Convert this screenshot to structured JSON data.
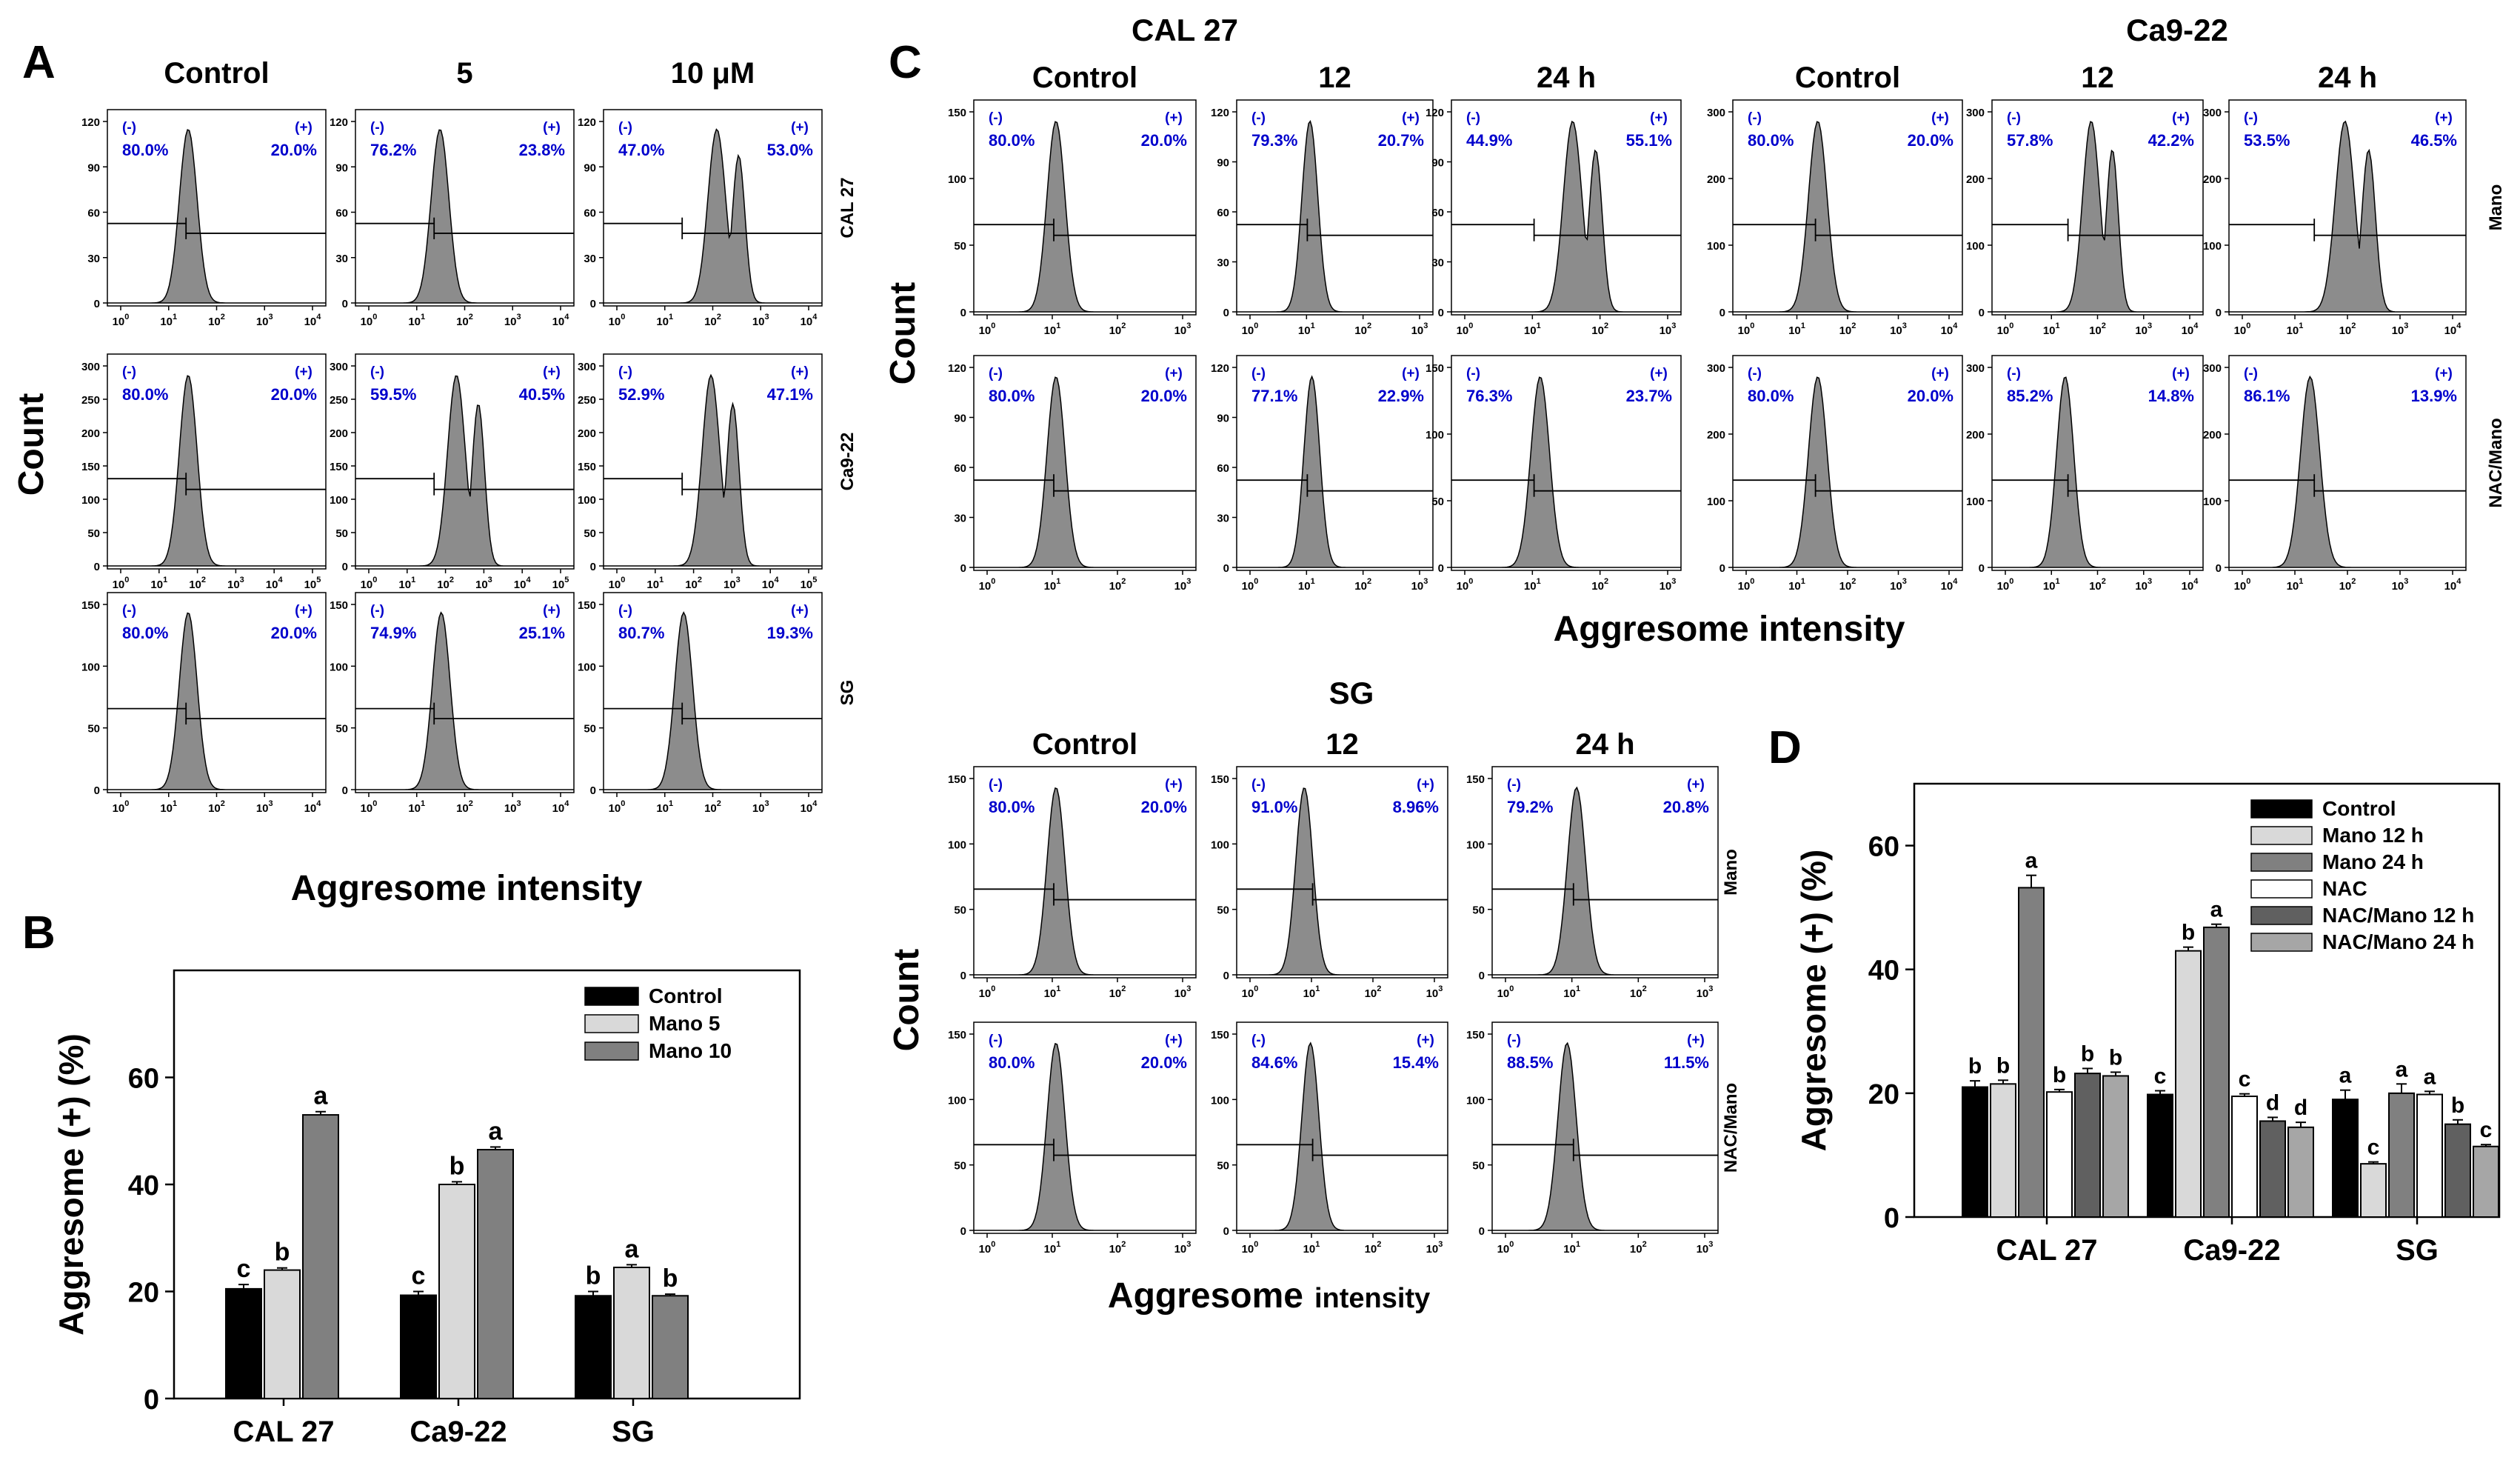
{
  "chart_data": [
    {
      "type": "histogram-grid",
      "panel": "A",
      "column_headers": [
        "Control",
        "5",
        "10 μM"
      ],
      "row_labels": [
        "CAL 27",
        "Ca9-22",
        "SG"
      ],
      "ylabel": "Count",
      "xlabel": "Aggresome intensity",
      "gate_neg": "(-)",
      "gate_pos": "(+)",
      "rows": [
        {
          "yticks": [
            "0",
            "30",
            "60",
            "90",
            "120"
          ],
          "xdecades": 4,
          "cells": [
            {
              "neg": "80.0%",
              "pos": "20.0%"
            },
            {
              "neg": "76.2%",
              "pos": "23.8%"
            },
            {
              "neg": "47.0%",
              "pos": "53.0%"
            }
          ]
        },
        {
          "yticks": [
            "0",
            "50",
            "100",
            "150",
            "200",
            "250",
            "300"
          ],
          "xdecades": 5,
          "cells": [
            {
              "neg": "80.0%",
              "pos": "20.0%"
            },
            {
              "neg": "59.5%",
              "pos": "40.5%"
            },
            {
              "neg": "52.9%",
              "pos": "47.1%"
            }
          ]
        },
        {
          "yticks": [
            "0",
            "50",
            "100",
            "150"
          ],
          "xdecades": 4,
          "cells": [
            {
              "neg": "80.0%",
              "pos": "20.0%"
            },
            {
              "neg": "74.9%",
              "pos": "25.1%"
            },
            {
              "neg": "80.7%",
              "pos": "19.3%"
            }
          ]
        }
      ]
    },
    {
      "type": "bar",
      "panel": "B",
      "categories": [
        "CAL 27",
        "Ca9-22",
        "SG"
      ],
      "series": [
        {
          "name": "Control",
          "color": "#000000",
          "values": [
            20.5,
            19.3,
            19.2
          ],
          "errors": [
            0.8,
            0.7,
            0.8
          ],
          "letters": [
            "c",
            "c",
            "b"
          ]
        },
        {
          "name": "Mano 5",
          "color": "#d9d9d9",
          "values": [
            24.0,
            40.0,
            24.5
          ],
          "errors": [
            0.4,
            0.5,
            0.5
          ],
          "letters": [
            "b",
            "b",
            "a"
          ]
        },
        {
          "name": "Mano 10",
          "color": "#808080",
          "values": [
            53.0,
            46.5,
            19.2
          ],
          "errors": [
            0.6,
            0.5,
            0.3
          ],
          "letters": [
            "a",
            "a",
            "b"
          ]
        }
      ],
      "ylabel": "Aggresome (+) (%)",
      "ylim": [
        0,
        80
      ],
      "yticks": [
        "0",
        "20",
        "40",
        "60"
      ]
    },
    {
      "type": "histogram-grid",
      "panel": "C",
      "group_titles": [
        "CAL 27",
        "Ca9-22"
      ],
      "column_headers": [
        "Control",
        "12",
        "24 h",
        "Control",
        "12",
        "24 h"
      ],
      "row_labels": [
        "Mano",
        "NAC/Mano"
      ],
      "ylabel": "Count",
      "xlabel": "Aggresome intensity",
      "gate_neg": "(-)",
      "gate_pos": "(+)",
      "rows": [
        {
          "cells": [
            {
              "neg": "80.0%",
              "pos": "20.0%"
            },
            {
              "neg": "79.3%",
              "pos": "20.7%"
            },
            {
              "neg": "44.9%",
              "pos": "55.1%"
            },
            {
              "neg": "80.0%",
              "pos": "20.0%"
            },
            {
              "neg": "57.8%",
              "pos": "42.2%"
            },
            {
              "neg": "53.5%",
              "pos": "46.5%"
            }
          ]
        },
        {
          "cells": [
            {
              "neg": "80.0%",
              "pos": "20.0%"
            },
            {
              "neg": "77.1%",
              "pos": "22.9%"
            },
            {
              "neg": "76.3%",
              "pos": "23.7%"
            },
            {
              "neg": "80.0%",
              "pos": "20.0%"
            },
            {
              "neg": "85.2%",
              "pos": "14.8%"
            },
            {
              "neg": "86.1%",
              "pos": "13.9%"
            }
          ]
        }
      ],
      "yticks_by_cell": [
        [
          [
            "0",
            "50",
            "100",
            "150"
          ],
          [
            "0",
            "30",
            "60",
            "90",
            "120"
          ],
          [
            "0",
            "30",
            "60",
            "90",
            "120"
          ],
          [
            "0",
            "100",
            "200",
            "300"
          ],
          [
            "0",
            "100",
            "200",
            "300"
          ],
          [
            "0",
            "100",
            "200",
            "300"
          ]
        ],
        [
          [
            "0",
            "30",
            "60",
            "90",
            "120"
          ],
          [
            "0",
            "30",
            "60",
            "90",
            "120"
          ],
          [
            "0",
            "50",
            "100",
            "150"
          ],
          [
            "0",
            "100",
            "200",
            "300"
          ],
          [
            "0",
            "100",
            "200",
            "300"
          ],
          [
            "0",
            "100",
            "200",
            "300"
          ]
        ]
      ]
    },
    {
      "type": "histogram-grid",
      "panel": "C-SG",
      "group_titles": [
        "SG"
      ],
      "column_headers": [
        "Control",
        "12",
        "24 h"
      ],
      "row_labels": [
        "Mano",
        "NAC/Mano"
      ],
      "ylabel": "Count",
      "xlabel_main": "Aggresome",
      "xlabel_sub": "intensity",
      "gate_neg": "(-)",
      "gate_pos": "(+)",
      "rows": [
        {
          "cells": [
            {
              "neg": "80.0%",
              "pos": "20.0%"
            },
            {
              "neg": "91.0%",
              "pos": "8.96%"
            },
            {
              "neg": "79.2%",
              "pos": "20.8%"
            }
          ]
        },
        {
          "cells": [
            {
              "neg": "80.0%",
              "pos": "20.0%"
            },
            {
              "neg": "84.6%",
              "pos": "15.4%"
            },
            {
              "neg": "88.5%",
              "pos": "11.5%"
            }
          ]
        }
      ],
      "yticks": [
        "0",
        "50",
        "100",
        "150"
      ]
    },
    {
      "type": "bar",
      "panel": "D",
      "categories": [
        "CAL 27",
        "Ca9-22",
        "SG"
      ],
      "series": [
        {
          "name": "Control",
          "color": "#000000",
          "values": [
            21.0,
            19.8,
            19.0
          ],
          "errors": [
            1.0,
            0.6,
            1.5
          ],
          "letters": [
            "b",
            "c",
            "a"
          ]
        },
        {
          "name": "Mano 12 h",
          "color": "#d9d9d9",
          "values": [
            21.5,
            43.0,
            8.6
          ],
          "errors": [
            0.6,
            0.6,
            0.3
          ],
          "letters": [
            "b",
            "b",
            "c"
          ]
        },
        {
          "name": "Mano 24 h",
          "color": "#808080",
          "values": [
            53.2,
            46.8,
            20.0
          ],
          "errors": [
            2.0,
            0.5,
            1.5
          ],
          "letters": [
            "a",
            "a",
            "a"
          ]
        },
        {
          "name": "NAC",
          "color": "#ffffff",
          "values": [
            20.2,
            19.5,
            19.8
          ],
          "errors": [
            0.4,
            0.4,
            0.5
          ],
          "letters": [
            "b",
            "c",
            "a"
          ]
        },
        {
          "name": "NAC/Mano 12 h",
          "color": "#606060",
          "values": [
            23.2,
            15.5,
            15.0
          ],
          "errors": [
            0.8,
            0.6,
            0.7
          ],
          "letters": [
            "b",
            "d",
            "b"
          ]
        },
        {
          "name": "NAC/Mano 24 h",
          "color": "#a6a6a6",
          "values": [
            22.8,
            14.5,
            11.4
          ],
          "errors": [
            0.6,
            0.8,
            0.3
          ],
          "letters": [
            "b",
            "d",
            "c"
          ]
        }
      ],
      "ylabel": "Aggresome (+) (%)",
      "ylim": [
        0,
        70
      ],
      "yticks": [
        "0",
        "20",
        "40",
        "60"
      ]
    }
  ],
  "labels": {
    "panel_a": "A",
    "panel_b": "B",
    "panel_c": "C",
    "panel_d": "D"
  }
}
